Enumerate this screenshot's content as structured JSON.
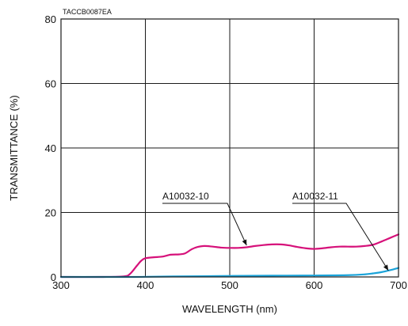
{
  "chart_data": {
    "type": "line",
    "code": "TACCB0087EA",
    "xlabel": "WAVELENGTH (nm)",
    "ylabel": "TRANSMITTANCE (%)",
    "xlim": [
      300,
      700
    ],
    "ylim": [
      0,
      80
    ],
    "xticks": [
      300,
      400,
      500,
      600,
      700
    ],
    "yticks": [
      0,
      20,
      40,
      60,
      80
    ],
    "grid": true,
    "series": [
      {
        "name": "A10032-10",
        "color": "#d6117a",
        "x": [
          300,
          350,
          375,
          382,
          390,
          395,
          400,
          410,
          420,
          430,
          440,
          447,
          455,
          462,
          470,
          480,
          490,
          500,
          510,
          520,
          530,
          540,
          550,
          560,
          570,
          580,
          590,
          600,
          610,
          620,
          630,
          640,
          650,
          660,
          670,
          680,
          690,
          700
        ],
        "y": [
          0,
          0,
          0.2,
          1,
          3.5,
          5,
          5.8,
          6.1,
          6.3,
          6.9,
          7,
          7.3,
          8.6,
          9.3,
          9.6,
          9.4,
          9.1,
          9,
          9,
          9.2,
          9.6,
          9.9,
          10.1,
          10.1,
          9.8,
          9.3,
          8.9,
          8.7,
          8.9,
          9.2,
          9.4,
          9.4,
          9.4,
          9.6,
          10,
          11,
          12.1,
          13.2
        ]
      },
      {
        "name": "A10032-11",
        "color": "#1aa3d9",
        "x": [
          300,
          380,
          400,
          450,
          500,
          550,
          600,
          640,
          660,
          670,
          680,
          690,
          700
        ],
        "y": [
          0,
          0,
          0.05,
          0.2,
          0.3,
          0.4,
          0.45,
          0.55,
          0.8,
          1.1,
          1.5,
          2.1,
          2.8
        ]
      }
    ],
    "annotations": [
      {
        "text": "A10032-10",
        "series": "A10032-10",
        "points_to": [
          520,
          9.8
        ]
      },
      {
        "text": "A10032-11",
        "series": "A10032-11",
        "points_to": [
          688,
          2.0
        ]
      }
    ]
  }
}
